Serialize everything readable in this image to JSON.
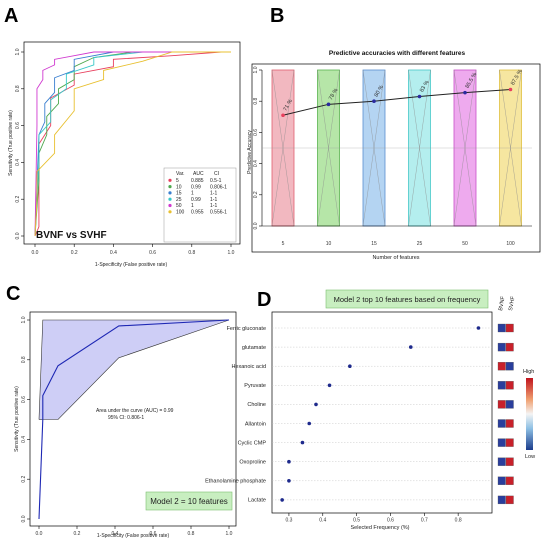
{
  "panels": {
    "A": {
      "letter": "A"
    },
    "B": {
      "letter": "B"
    },
    "C": {
      "letter": "C"
    },
    "D": {
      "letter": "D"
    }
  },
  "chart_data": [
    {
      "id": "A",
      "type": "line",
      "title": "BVNF vs SVHF",
      "xlabel": "1-Specificity (False positive rate)",
      "ylabel": "Sensitivity (True positive rate)",
      "xlim": [
        0,
        1
      ],
      "ylim": [
        0,
        1
      ],
      "xticks": [
        "0.0",
        "0.2",
        "0.4",
        "0.6",
        "0.8",
        "1.0"
      ],
      "yticks": [
        "0.0",
        "0.2",
        "0.4",
        "0.6",
        "0.8",
        "1.0"
      ],
      "legend_position": "bottom-right",
      "legend_header": {
        "var": "Var.",
        "auc": "AUC",
        "ci": "CI"
      },
      "series": [
        {
          "name": "5",
          "auc": "0.885",
          "ci": "0.5-1",
          "color": "#e8405e",
          "x": [
            0,
            0.02,
            0.02,
            0.08,
            0.08,
            0.2,
            0.2,
            0.4,
            0.4,
            0.7,
            0.95,
            1
          ],
          "y": [
            0,
            0.05,
            0.5,
            0.6,
            0.75,
            0.82,
            0.88,
            0.92,
            0.96,
            0.98,
            1,
            1
          ]
        },
        {
          "name": "10",
          "auc": "0.99",
          "ci": "0.806-1",
          "color": "#4ea84e",
          "x": [
            0,
            0.02,
            0.02,
            0.06,
            0.06,
            0.12,
            0.12,
            0.2,
            0.2,
            0.3,
            0.5,
            1
          ],
          "y": [
            0,
            0.3,
            0.45,
            0.55,
            0.65,
            0.72,
            0.8,
            0.85,
            0.92,
            0.97,
            1,
            1
          ]
        },
        {
          "name": "15",
          "auc": "1",
          "ci": "1-1",
          "color": "#3a7fd0",
          "x": [
            0,
            0.02,
            0.05,
            0.05,
            0.1,
            0.1,
            0.2,
            0.2,
            0.4,
            1
          ],
          "y": [
            0,
            0.55,
            0.62,
            0.72,
            0.78,
            0.86,
            0.9,
            0.96,
            1,
            1
          ]
        },
        {
          "name": "25",
          "auc": "0.99",
          "ci": "1-1",
          "color": "#38c8c8",
          "x": [
            0,
            0.02,
            0.02,
            0.08,
            0.08,
            0.16,
            0.16,
            0.3,
            0.3,
            0.55,
            1
          ],
          "y": [
            0,
            0.4,
            0.55,
            0.62,
            0.74,
            0.8,
            0.88,
            0.93,
            0.97,
            1,
            1
          ]
        },
        {
          "name": "50",
          "auc": "1",
          "ci": "1-1",
          "color": "#d03ad0",
          "x": [
            0,
            0.01,
            0.01,
            0.04,
            0.04,
            0.1,
            0.1,
            0.2,
            0.3,
            0.6,
            1
          ],
          "y": [
            0,
            0.6,
            0.8,
            0.85,
            0.9,
            0.93,
            0.96,
            0.98,
            1,
            1,
            1
          ]
        },
        {
          "name": "100",
          "auc": "0.955",
          "ci": "0.556-1",
          "color": "#e8c030",
          "x": [
            0,
            0.01,
            0.01,
            0.1,
            0.1,
            0.2,
            0.2,
            0.35,
            0.35,
            0.55,
            0.7,
            1
          ],
          "y": [
            0,
            0.2,
            0.35,
            0.45,
            0.55,
            0.68,
            0.8,
            0.85,
            0.9,
            0.95,
            1,
            1
          ]
        }
      ]
    },
    {
      "id": "B",
      "type": "line",
      "title": "Predictive accuracies with different features",
      "xlabel": "Number of features",
      "ylabel": "Predictive Accuracy",
      "ylim": [
        0,
        1
      ],
      "yticks": [
        "0.0",
        "0.2",
        "0.4",
        "0.6",
        "0.8",
        "1.0"
      ],
      "categories": [
        "5",
        "10",
        "15",
        "25",
        "50",
        "100"
      ],
      "values": [
        0.71,
        0.78,
        0.8,
        0.83,
        0.855,
        0.875
      ],
      "labels": [
        "71 %",
        "78 %",
        "80 %",
        "83 %",
        "85.5 %",
        "87.5 %"
      ],
      "bar_colors": [
        "#f2b8c0",
        "#b6e6a8",
        "#b4d4f2",
        "#b4eeee",
        "#eeaaee",
        "#f6e6a0"
      ],
      "bar_edges": [
        "#e0606e",
        "#5ab450",
        "#5a8fd0",
        "#48c8c8",
        "#c850c8",
        "#e0c040"
      ],
      "point_colors": [
        "#e8405e",
        "#2a2aa0",
        "#2a2aa0",
        "#2a2aa0",
        "#2a2aa0",
        "#e8405e"
      ]
    },
    {
      "id": "C",
      "type": "line",
      "xlabel": "1-Specificity (False positive rate)",
      "ylabel": "Sensitivity (True positive rate)",
      "xlim": [
        0,
        1
      ],
      "ylim": [
        0,
        1
      ],
      "xticks": [
        "0.0",
        "0.2",
        "0.4",
        "0.6",
        "0.8",
        "1.0"
      ],
      "yticks": [
        "0.0",
        "0.2",
        "0.4",
        "0.6",
        "0.8",
        "1.0"
      ],
      "roc": {
        "x": [
          0,
          0.02,
          0.02,
          0.1,
          0.42,
          1
        ],
        "y": [
          0,
          0.5,
          0.62,
          0.77,
          0.97,
          1
        ]
      },
      "ci_upper": {
        "x": [
          0,
          0.02,
          0.42,
          1
        ],
        "y": [
          0.5,
          1.0,
          1.0,
          1.0
        ]
      },
      "ci_lower": {
        "x": [
          0.02,
          0.1,
          0.42,
          1
        ],
        "y": [
          0.5,
          0.5,
          0.81,
          1.0
        ]
      },
      "auc_text": "Area under the curve (AUC) = 0.99",
      "ci_text": "95% CI: 0.806-1",
      "badge": "Model 2 = 10 features",
      "fill_color": "#c6c6f4",
      "line_color": "#1e28b4"
    },
    {
      "id": "D",
      "type": "scatter",
      "title": "Model 2 top 10 features based on frequency",
      "xlabel": "Selected Frequency (%)",
      "xlim": [
        0.25,
        0.9
      ],
      "xticks": [
        "0.3",
        "0.4",
        "0.5",
        "0.6",
        "0.7",
        "0.8"
      ],
      "categories": [
        "Ferric gluconate",
        "glutamate",
        "Hexanoic acid",
        "Pyruvate",
        "Choline",
        "Allantoin",
        "Cyclic CMP",
        "Oxoproline",
        "Ethanolamine phosphate",
        "Lactate"
      ],
      "values": [
        0.86,
        0.66,
        0.48,
        0.42,
        0.38,
        0.36,
        0.34,
        0.3,
        0.3,
        0.28
      ],
      "heat_columns": [
        "BVNF",
        "SVHF"
      ],
      "heat_values": [
        [
          "low",
          "high"
        ],
        [
          "low",
          "high"
        ],
        [
          "high",
          "low"
        ],
        [
          "low",
          "high"
        ],
        [
          "high",
          "low"
        ],
        [
          "low",
          "high"
        ],
        [
          "low",
          "high"
        ],
        [
          "low",
          "high"
        ],
        [
          "low",
          "high"
        ],
        [
          "low",
          "high"
        ]
      ],
      "colorbar_high": "High",
      "colorbar_low": "Low"
    }
  ]
}
